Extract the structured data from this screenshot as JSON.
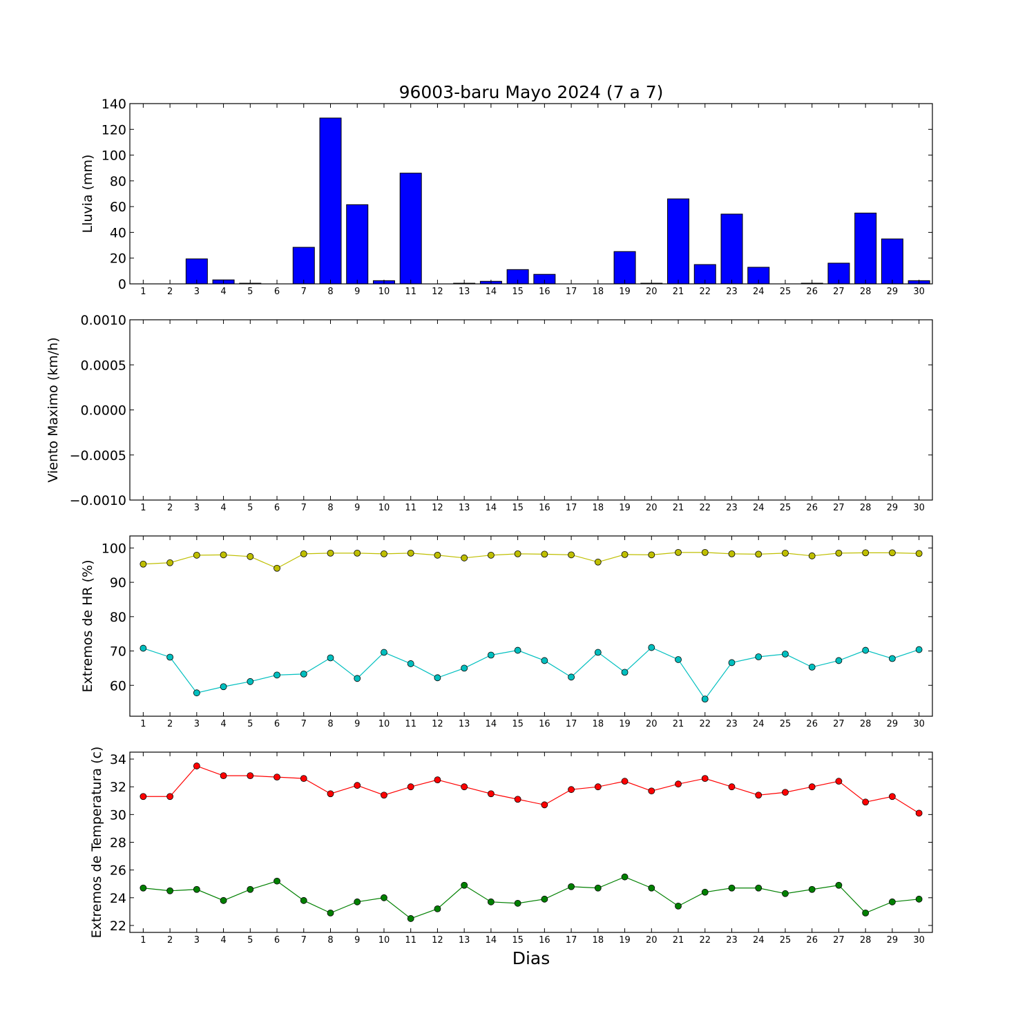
{
  "figure": {
    "title": "96003-baru Mayo 2024  (7 a 7)",
    "xlabel": "Dias"
  },
  "chart_data": [
    {
      "type": "bar",
      "id": "lluvia",
      "ylabel": "Lluvia (mm)",
      "ylim": [
        0,
        140
      ],
      "yticks": [
        0,
        20,
        40,
        60,
        80,
        100,
        120,
        140
      ],
      "ytick_labels": [
        "0",
        "20",
        "40",
        "60",
        "80",
        "100",
        "120",
        "140"
      ],
      "categories": [
        "1",
        "2",
        "3",
        "4",
        "5",
        "6",
        "7",
        "8",
        "9",
        "10",
        "11",
        "12",
        "13",
        "14",
        "15",
        "16",
        "17",
        "18",
        "19",
        "20",
        "21",
        "22",
        "23",
        "24",
        "25",
        "26",
        "27",
        "28",
        "29",
        "30"
      ],
      "values": [
        0,
        0,
        19.4,
        3.1,
        0.5,
        0,
        28.4,
        128.8,
        61.5,
        2.5,
        86.0,
        0,
        0.5,
        2.0,
        11.1,
        7.4,
        0,
        0,
        25.1,
        0.5,
        66.0,
        15.0,
        54.2,
        12.9,
        0,
        0.5,
        16.1,
        55.0,
        34.9,
        2.5
      ],
      "color": "#0000ff",
      "grid": false
    },
    {
      "type": "line",
      "id": "viento",
      "ylabel": "Viento Maximo (km/h)",
      "ylim": [
        -0.001,
        0.001
      ],
      "yticks": [
        -0.001,
        -0.0005,
        0,
        0.0005,
        0.001
      ],
      "ytick_labels": [
        "−0.0010",
        "−0.0005",
        "0.0000",
        "0.0005",
        "0.0010"
      ],
      "categories": [
        "1",
        "2",
        "3",
        "4",
        "5",
        "6",
        "7",
        "8",
        "9",
        "10",
        "11",
        "12",
        "13",
        "14",
        "15",
        "16",
        "17",
        "18",
        "19",
        "20",
        "21",
        "22",
        "23",
        "24",
        "25",
        "26",
        "27",
        "28",
        "29",
        "30"
      ],
      "series": [],
      "grid": false
    },
    {
      "type": "line",
      "id": "hr",
      "ylabel": "Extremos de HR (%)",
      "ylim": [
        51,
        103.5
      ],
      "yticks": [
        60,
        70,
        80,
        90,
        100
      ],
      "ytick_labels": [
        "60",
        "70",
        "80",
        "90",
        "100"
      ],
      "categories": [
        "1",
        "2",
        "3",
        "4",
        "5",
        "6",
        "7",
        "8",
        "9",
        "10",
        "11",
        "12",
        "13",
        "14",
        "15",
        "16",
        "17",
        "18",
        "19",
        "20",
        "21",
        "22",
        "23",
        "24",
        "25",
        "26",
        "27",
        "28",
        "29",
        "30"
      ],
      "series": [
        {
          "color": "#bfbf00",
          "values": [
            95.3,
            95.7,
            97.9,
            98.0,
            97.5,
            94.1,
            98.3,
            98.5,
            98.5,
            98.3,
            98.5,
            97.9,
            97.1,
            97.9,
            98.3,
            98.2,
            98.0,
            95.9,
            98.1,
            98.0,
            98.7,
            98.7,
            98.3,
            98.2,
            98.5,
            97.7,
            98.5,
            98.6,
            98.6,
            98.4
          ]
        },
        {
          "color": "#00bfbf",
          "values": [
            70.8,
            68.2,
            57.8,
            59.6,
            61.1,
            63.0,
            63.3,
            68.0,
            62.0,
            69.6,
            66.3,
            62.2,
            65.0,
            68.8,
            70.2,
            67.2,
            62.4,
            69.6,
            63.8,
            71.0,
            67.5,
            56.0,
            66.6,
            68.3,
            69.1,
            65.3,
            67.2,
            70.2,
            67.8,
            70.4
          ]
        }
      ],
      "grid": false
    },
    {
      "type": "line",
      "id": "temp",
      "ylabel": "Extremos de Temperatura (c)",
      "ylim": [
        21.5,
        34.5
      ],
      "yticks": [
        22,
        24,
        26,
        28,
        30,
        32,
        34
      ],
      "ytick_labels": [
        "22",
        "24",
        "26",
        "28",
        "30",
        "32",
        "34"
      ],
      "categories": [
        "1",
        "2",
        "3",
        "4",
        "5",
        "6",
        "7",
        "8",
        "9",
        "10",
        "11",
        "12",
        "13",
        "14",
        "15",
        "16",
        "17",
        "18",
        "19",
        "20",
        "21",
        "22",
        "23",
        "24",
        "25",
        "26",
        "27",
        "28",
        "29",
        "30"
      ],
      "series": [
        {
          "color": "#ff0000",
          "values": [
            31.3,
            31.3,
            33.5,
            32.8,
            32.8,
            32.7,
            32.6,
            31.5,
            32.1,
            31.4,
            32.0,
            32.5,
            32.0,
            31.5,
            31.1,
            30.7,
            31.8,
            32.0,
            32.4,
            31.7,
            32.2,
            32.6,
            32.0,
            31.4,
            31.6,
            32.0,
            32.4,
            30.9,
            31.3,
            30.1
          ]
        },
        {
          "color": "#008000",
          "values": [
            24.7,
            24.5,
            24.6,
            23.8,
            24.6,
            25.2,
            23.8,
            22.9,
            23.7,
            24.0,
            22.5,
            23.2,
            24.9,
            23.7,
            23.6,
            23.9,
            24.8,
            24.7,
            25.5,
            24.7,
            23.4,
            24.4,
            24.7,
            24.7,
            24.3,
            24.6,
            24.9,
            22.9,
            23.7,
            23.9
          ]
        }
      ],
      "grid": false
    }
  ]
}
